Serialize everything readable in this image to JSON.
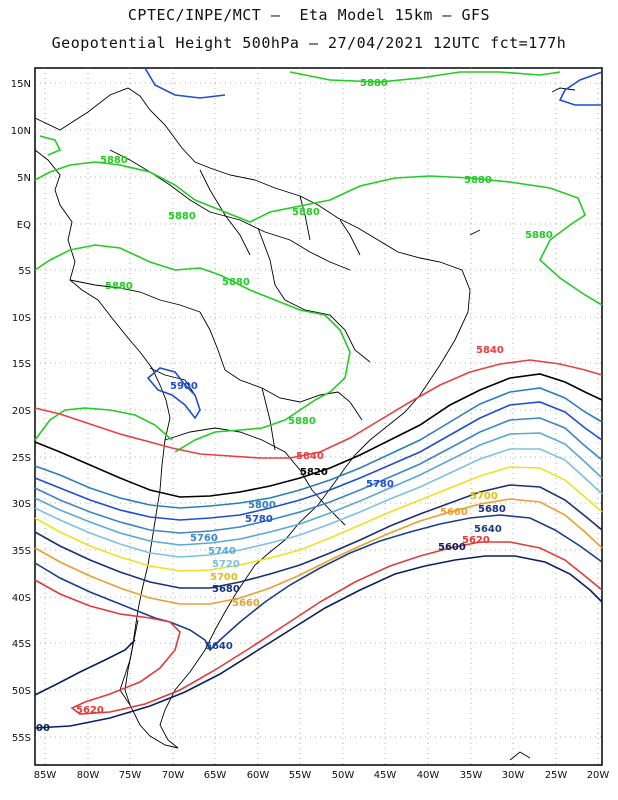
{
  "header": {
    "line1": "CPTEC/INPE/MCT –  Eta Model 15km – GFS",
    "line2": "Geopotential Height 500hPa – 27/04/2021 12UTC fct=177h"
  },
  "axes": {
    "lat_labels": [
      "15N",
      "10N",
      "5N",
      "EQ",
      "5S",
      "10S",
      "15S",
      "20S",
      "25S",
      "30S",
      "35S",
      "40S",
      "45S",
      "50S",
      "55S"
    ],
    "lon_labels": [
      "85W",
      "80W",
      "75W",
      "70W",
      "65W",
      "60W",
      "55W",
      "50W",
      "45W",
      "40W",
      "35W",
      "30W",
      "25W",
      "20W"
    ]
  },
  "contours": [
    {
      "level": "5880",
      "color": "#22cc22"
    },
    {
      "level": "5840",
      "color": "#e84040"
    },
    {
      "level": "5820",
      "color": "#000000"
    },
    {
      "level": "5800",
      "color": "#2b7fb8"
    },
    {
      "level": "5780",
      "color": "#1f4fd0"
    },
    {
      "level": "5760",
      "color": "#3a86c8"
    },
    {
      "level": "5740",
      "color": "#58a8d8"
    },
    {
      "level": "5720",
      "color": "#7ec0e0"
    },
    {
      "level": "5700",
      "color": "#f0e020"
    },
    {
      "level": "5680",
      "color": "#1a2f7a"
    },
    {
      "level": "5660",
      "color": "#e8a030"
    },
    {
      "level": "5640",
      "color": "#1a3f8a"
    },
    {
      "level": "5620",
      "color": "#e03a3a"
    },
    {
      "level": "5600",
      "color": "#0a1f5f"
    }
  ],
  "labels": {
    "green": "5880",
    "blue_high": "5900",
    "red": "5840",
    "black": "5820",
    "c5800": "5800",
    "c5780": "5780",
    "c5760": "5760",
    "c5740": "5740",
    "c5720": "5720",
    "c5700": "5700",
    "c5680": "5680",
    "c5660": "5660",
    "c5640": "5640",
    "c5620": "5620",
    "c5600": "5600",
    "left_edge": "00"
  }
}
